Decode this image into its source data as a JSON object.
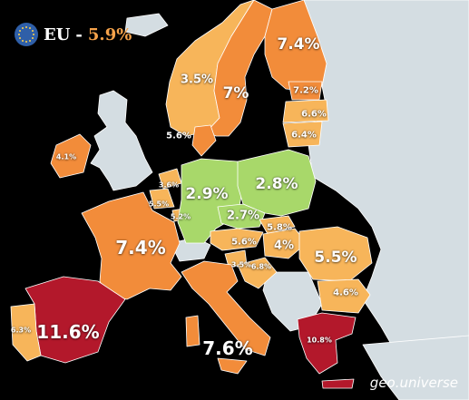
{
  "legend": {
    "label": "EU",
    "separator": "-",
    "value": "5.9%"
  },
  "watermark": "geo.universe",
  "colors": {
    "background": "#000000",
    "non_eu": "#d4dde2",
    "low": "#a8d86a",
    "mid": "#f7b55a",
    "high": "#f28c3a",
    "very_high": "#b3182b",
    "flag": "#2f5fa8",
    "flag_stars": "#ffd24a"
  },
  "countries": [
    {
      "name": "Spain",
      "label": "11.6%",
      "value": 11.6
    },
    {
      "name": "Greece",
      "label": "10.8%",
      "value": 10.8
    },
    {
      "name": "Italy",
      "label": "7.6%",
      "value": 7.6
    },
    {
      "name": "France",
      "label": "7.4%",
      "value": 7.4
    },
    {
      "name": "Finland",
      "label": "7.4%",
      "value": 7.4
    },
    {
      "name": "Estonia",
      "label": "7.2%",
      "value": 7.2
    },
    {
      "name": "Sweden",
      "label": "7%",
      "value": 7.0
    },
    {
      "name": "Latvia",
      "label": "6.6%",
      "value": 6.6
    },
    {
      "name": "Lithuania",
      "label": "6.4%",
      "value": 6.4
    },
    {
      "name": "Portugal",
      "label": "6.3%",
      "value": 6.3
    },
    {
      "name": "Croatia",
      "label": "6.8%",
      "value": 6.8
    },
    {
      "name": "Slovakia",
      "label": "5.8%",
      "value": 5.8
    },
    {
      "name": "Denmark",
      "label": "5.6%",
      "value": 5.6
    },
    {
      "name": "Austria",
      "label": "5.6%",
      "value": 5.6
    },
    {
      "name": "Romania",
      "label": "5.5%",
      "value": 5.5
    },
    {
      "name": "Belgium",
      "label": "5.5%",
      "value": 5.5
    },
    {
      "name": "Luxembourg",
      "label": "5.2%",
      "value": 5.2
    },
    {
      "name": "Slovenia",
      "label": "3.5%",
      "value": 3.5
    },
    {
      "name": "Bulgaria",
      "label": "4.6%",
      "value": 4.6
    },
    {
      "name": "Ireland",
      "label": "4.1%",
      "value": 4.1
    },
    {
      "name": "Hungary",
      "label": "4%",
      "value": 4.0
    },
    {
      "name": "Netherlands",
      "label": "3.6%",
      "value": 3.6
    },
    {
      "name": "Norway",
      "label": "3.5%",
      "value": 3.5
    },
    {
      "name": "Germany",
      "label": "2.9%",
      "value": 2.9
    },
    {
      "name": "Poland",
      "label": "2.8%",
      "value": 2.8
    },
    {
      "name": "Czechia",
      "label": "2.7%",
      "value": 2.7
    }
  ]
}
